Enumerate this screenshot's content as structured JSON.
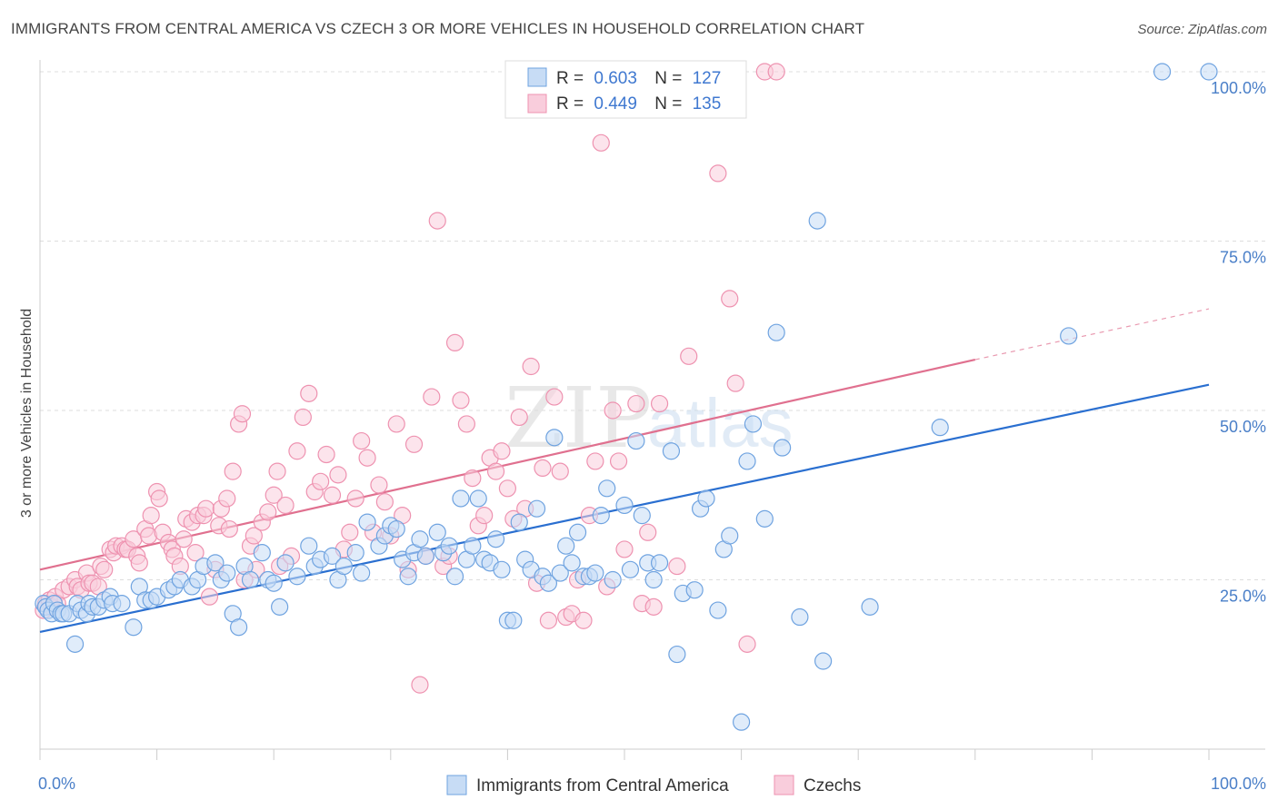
{
  "header": {
    "title": "IMMIGRANTS FROM CENTRAL AMERICA VS CZECH 3 OR MORE VEHICLES IN HOUSEHOLD CORRELATION CHART",
    "source": "Source: ZipAtlas.com"
  },
  "watermark": {
    "zip": "ZIP",
    "atlas": "atlas"
  },
  "colors": {
    "blue": "#6fa3e0",
    "blue_fill": "#c7dcf5",
    "blue_line": "#2a6fd0",
    "pink": "#ee92b0",
    "pink_fill": "#f9cddc",
    "pink_line": "#e0708f",
    "tick_text": "#4a7fc8",
    "grid": "#dddddd"
  },
  "legend": {
    "rows": [
      {
        "r_label": "R =",
        "r_value": "0.603",
        "n_label": "N =",
        "n_value": "127"
      },
      {
        "r_label": "R =",
        "r_value": "0.449",
        "n_label": "N =",
        "n_value": "135"
      }
    ]
  },
  "chart_data": {
    "type": "scatter",
    "title": "IMMIGRANTS FROM CENTRAL AMERICA VS CZECH 3 OR MORE VEHICLES IN HOUSEHOLD CORRELATION CHART",
    "xlabel": "",
    "ylabel": "3 or more Vehicles in Household",
    "xlim": [
      0,
      100
    ],
    "ylim": [
      0,
      100
    ],
    "x_tick_labels": [
      "0.0%",
      "100.0%"
    ],
    "y_tick_labels": [
      "25.0%",
      "50.0%",
      "75.0%",
      "100.0%"
    ],
    "y_ticks": [
      25,
      50,
      75,
      100
    ],
    "grid": true,
    "legend_position": "top-center",
    "series": [
      {
        "name": "Immigrants from Central America",
        "r": 0.603,
        "n": 127,
        "trend": {
          "x0": 0,
          "y0": 17.3,
          "x1": 100,
          "y1": 53.8
        },
        "points": [
          [
            0.3,
            21.5
          ],
          [
            0.5,
            21
          ],
          [
            0.7,
            20.5
          ],
          [
            1,
            20
          ],
          [
            1.2,
            21.5
          ],
          [
            1.5,
            20.5
          ],
          [
            1.8,
            20
          ],
          [
            2,
            20
          ],
          [
            2.5,
            20
          ],
          [
            3,
            15.5
          ],
          [
            3.2,
            21.5
          ],
          [
            3.5,
            20.5
          ],
          [
            4,
            20
          ],
          [
            4.2,
            21.5
          ],
          [
            4.5,
            21
          ],
          [
            5,
            21
          ],
          [
            5.5,
            22
          ],
          [
            6,
            22.5
          ],
          [
            6.2,
            21.5
          ],
          [
            7,
            21.5
          ],
          [
            8,
            18
          ],
          [
            8.5,
            24
          ],
          [
            9,
            22
          ],
          [
            9.5,
            22
          ],
          [
            10,
            22.5
          ],
          [
            11,
            23.5
          ],
          [
            11.5,
            24
          ],
          [
            12,
            25
          ],
          [
            13,
            24
          ],
          [
            13.5,
            25
          ],
          [
            14,
            27
          ],
          [
            15,
            27.5
          ],
          [
            15.5,
            25
          ],
          [
            16,
            26
          ],
          [
            16.5,
            20
          ],
          [
            17,
            18
          ],
          [
            17.5,
            27
          ],
          [
            18,
            25
          ],
          [
            19,
            29
          ],
          [
            19.5,
            25
          ],
          [
            20,
            24.5
          ],
          [
            20.5,
            21
          ],
          [
            21,
            27.5
          ],
          [
            22,
            25.5
          ],
          [
            23,
            30
          ],
          [
            23.5,
            27
          ],
          [
            24,
            28
          ],
          [
            25,
            28.5
          ],
          [
            25.5,
            25
          ],
          [
            26,
            27
          ],
          [
            27,
            29
          ],
          [
            27.5,
            26
          ],
          [
            28,
            33.5
          ],
          [
            29,
            30
          ],
          [
            29.5,
            31.5
          ],
          [
            30,
            33
          ],
          [
            30.5,
            32.5
          ],
          [
            31,
            28
          ],
          [
            31.5,
            25.5
          ],
          [
            32,
            29
          ],
          [
            32.5,
            31
          ],
          [
            33,
            28.5
          ],
          [
            34,
            32
          ],
          [
            34.5,
            29
          ],
          [
            35,
            30
          ],
          [
            35.5,
            25.5
          ],
          [
            36,
            37
          ],
          [
            36.5,
            28
          ],
          [
            37,
            30
          ],
          [
            37.5,
            37
          ],
          [
            38,
            28
          ],
          [
            38.5,
            27.5
          ],
          [
            39,
            31
          ],
          [
            39.5,
            26.5
          ],
          [
            40,
            19
          ],
          [
            40.5,
            19
          ],
          [
            41,
            33.5
          ],
          [
            41.5,
            28
          ],
          [
            42,
            26.5
          ],
          [
            42.5,
            35.5
          ],
          [
            43,
            25.5
          ],
          [
            43.5,
            24.5
          ],
          [
            44,
            46
          ],
          [
            44.5,
            26
          ],
          [
            45,
            30
          ],
          [
            45.5,
            27.5
          ],
          [
            46,
            32
          ],
          [
            46.5,
            25.5
          ],
          [
            47,
            25.5
          ],
          [
            47.5,
            26
          ],
          [
            48,
            34.5
          ],
          [
            48.5,
            38.5
          ],
          [
            49,
            25
          ],
          [
            50,
            36
          ],
          [
            50.5,
            26.5
          ],
          [
            51,
            45.5
          ],
          [
            51.5,
            34.5
          ],
          [
            52,
            27.5
          ],
          [
            52.5,
            25
          ],
          [
            53,
            27.5
          ],
          [
            54,
            44
          ],
          [
            54.5,
            14
          ],
          [
            55,
            23
          ],
          [
            56,
            23.5
          ],
          [
            56.5,
            35.5
          ],
          [
            57,
            37
          ],
          [
            58,
            20.5
          ],
          [
            58.5,
            29.5
          ],
          [
            59,
            31.5
          ],
          [
            60,
            4
          ],
          [
            60.5,
            42.5
          ],
          [
            61,
            48
          ],
          [
            62,
            34
          ],
          [
            63,
            61.5
          ],
          [
            63.5,
            44.5
          ],
          [
            65,
            19.5
          ],
          [
            66.5,
            78
          ],
          [
            67,
            13
          ],
          [
            71,
            21
          ],
          [
            77,
            47.5
          ],
          [
            88,
            61
          ],
          [
            96,
            100
          ],
          [
            100,
            100
          ]
        ]
      },
      {
        "name": "Czechs",
        "r": 0.449,
        "n": 135,
        "trend": {
          "x0": 0,
          "y0": 26.5,
          "x1": 80,
          "y1": 57.5,
          "dash_x1": 100,
          "dash_y1": 65
        },
        "points": [
          [
            0.3,
            20.5
          ],
          [
            0.5,
            21.5
          ],
          [
            0.8,
            22
          ],
          [
            1,
            21
          ],
          [
            1.3,
            22.5
          ],
          [
            1.5,
            21.5
          ],
          [
            2,
            23.5
          ],
          [
            2.5,
            24
          ],
          [
            3,
            25
          ],
          [
            3.2,
            24
          ],
          [
            3.5,
            23.5
          ],
          [
            4,
            26
          ],
          [
            4.2,
            24.5
          ],
          [
            4.5,
            24.5
          ],
          [
            5,
            24
          ],
          [
            5.2,
            27
          ],
          [
            5.5,
            26.5
          ],
          [
            6,
            29.5
          ],
          [
            6.3,
            29
          ],
          [
            6.5,
            30
          ],
          [
            7,
            30
          ],
          [
            7.3,
            29.5
          ],
          [
            7.5,
            29.5
          ],
          [
            8,
            31
          ],
          [
            8.3,
            28.5
          ],
          [
            8.5,
            27.5
          ],
          [
            9,
            32.5
          ],
          [
            9.3,
            31.5
          ],
          [
            9.5,
            34.5
          ],
          [
            10,
            38
          ],
          [
            10.2,
            37
          ],
          [
            10.5,
            32
          ],
          [
            11,
            30.5
          ],
          [
            11.3,
            29.5
          ],
          [
            11.5,
            28.5
          ],
          [
            12,
            27
          ],
          [
            12.3,
            31
          ],
          [
            12.5,
            34
          ],
          [
            13,
            33.5
          ],
          [
            13.3,
            29
          ],
          [
            13.5,
            34.5
          ],
          [
            14,
            34.5
          ],
          [
            14.2,
            35.5
          ],
          [
            14.5,
            22.5
          ],
          [
            15,
            26.5
          ],
          [
            15.3,
            33
          ],
          [
            15.5,
            35.5
          ],
          [
            16,
            37
          ],
          [
            16.2,
            32.5
          ],
          [
            16.5,
            41
          ],
          [
            17,
            48
          ],
          [
            17.3,
            49.5
          ],
          [
            17.5,
            25
          ],
          [
            18,
            30
          ],
          [
            18.3,
            31.5
          ],
          [
            18.5,
            26.5
          ],
          [
            19,
            33.5
          ],
          [
            19.5,
            35
          ],
          [
            20,
            37.5
          ],
          [
            20.3,
            41
          ],
          [
            20.5,
            27
          ],
          [
            21,
            36
          ],
          [
            21.5,
            28.5
          ],
          [
            22,
            44
          ],
          [
            22.5,
            49
          ],
          [
            23,
            52.5
          ],
          [
            23.5,
            38
          ],
          [
            24,
            39.5
          ],
          [
            24.5,
            43.5
          ],
          [
            25,
            37.5
          ],
          [
            25.5,
            40.5
          ],
          [
            26,
            29.5
          ],
          [
            26.5,
            32
          ],
          [
            27,
            37
          ],
          [
            27.5,
            45.5
          ],
          [
            28,
            43
          ],
          [
            28.5,
            32
          ],
          [
            29,
            39
          ],
          [
            29.5,
            36.5
          ],
          [
            30,
            31.5
          ],
          [
            30.5,
            48
          ],
          [
            31,
            34.5
          ],
          [
            31.5,
            26.5
          ],
          [
            32,
            45
          ],
          [
            32.5,
            9.5
          ],
          [
            33,
            28.5
          ],
          [
            33.5,
            52
          ],
          [
            34,
            78
          ],
          [
            34.5,
            27
          ],
          [
            35,
            28.5
          ],
          [
            35.5,
            60
          ],
          [
            36,
            51.5
          ],
          [
            36.5,
            48
          ],
          [
            37,
            40
          ],
          [
            37.5,
            33
          ],
          [
            38,
            34.5
          ],
          [
            38.5,
            43
          ],
          [
            39,
            41
          ],
          [
            39.5,
            44
          ],
          [
            40,
            38.5
          ],
          [
            40.5,
            34
          ],
          [
            41,
            49
          ],
          [
            41.5,
            35.5
          ],
          [
            42,
            56.5
          ],
          [
            42.5,
            24.5
          ],
          [
            43,
            41.5
          ],
          [
            43.5,
            19
          ],
          [
            44,
            52
          ],
          [
            44.5,
            41
          ],
          [
            45,
            19.5
          ],
          [
            45.5,
            20
          ],
          [
            46,
            25
          ],
          [
            46.5,
            19
          ],
          [
            47,
            34.5
          ],
          [
            47.5,
            42.5
          ],
          [
            48,
            89.5
          ],
          [
            48.5,
            24
          ],
          [
            49,
            50
          ],
          [
            49.5,
            42.5
          ],
          [
            50,
            29.5
          ],
          [
            51,
            51
          ],
          [
            51.5,
            21.5
          ],
          [
            52,
            32
          ],
          [
            52.5,
            21
          ],
          [
            53,
            51
          ],
          [
            54.5,
            27
          ],
          [
            55.5,
            58
          ],
          [
            58,
            85
          ],
          [
            59,
            66.5
          ],
          [
            59.5,
            54
          ],
          [
            60.5,
            15.5
          ],
          [
            62,
            100
          ],
          [
            63,
            100
          ]
        ]
      }
    ]
  }
}
